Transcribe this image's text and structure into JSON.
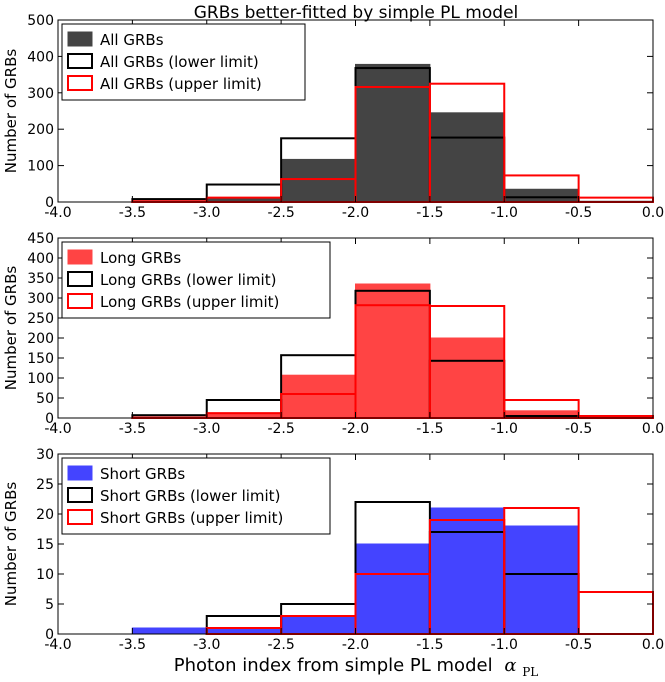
{
  "title": "GRBs better-fitted by simple PL model",
  "xlabel": "Photon index from simple PL model",
  "xlabel_symbol": "α",
  "xlabel_subscript": "PL",
  "colors": {
    "all": "#444444",
    "long": "#ff4444",
    "short": "#4444ff",
    "limit_lower": "#000000",
    "limit_upper": "#ff0000"
  },
  "chart_data": [
    {
      "type": "bar",
      "id": "all",
      "ylabel": "Number of GRBs",
      "xlim": [
        -4.0,
        0.0
      ],
      "ylim": [
        0,
        500
      ],
      "xticks": [
        "-4.0",
        "-3.5",
        "-3.0",
        "-2.5",
        "-2.0",
        "-1.5",
        "-1.0",
        "-0.5",
        "0.0"
      ],
      "yticks": [
        "0",
        "100",
        "200",
        "300",
        "400",
        "500"
      ],
      "bin_edges": [
        -4.0,
        -3.5,
        -3.0,
        -2.5,
        -2.0,
        -1.5,
        -1.0,
        -0.5,
        0.0
      ],
      "legend": [
        "All GRBs",
        "All GRBs (lower limit)",
        "All GRBs (upper limit)"
      ],
      "series": [
        {
          "name": "All GRBs",
          "style": "filled",
          "values": [
            0,
            3,
            10,
            117,
            378,
            245,
            35,
            2
          ]
        },
        {
          "name": "All GRBs (lower limit)",
          "style": "outline-black",
          "values": [
            0,
            8,
            48,
            175,
            368,
            177,
            13,
            0
          ]
        },
        {
          "name": "All GRBs (upper limit)",
          "style": "outline-red",
          "values": [
            0,
            2,
            12,
            63,
            316,
            325,
            73,
            12
          ]
        }
      ]
    },
    {
      "type": "bar",
      "id": "long",
      "ylabel": "Number of GRBs",
      "xlim": [
        -4.0,
        0.0
      ],
      "ylim": [
        0,
        450
      ],
      "xticks": [
        "-4.0",
        "-3.5",
        "-3.0",
        "-2.5",
        "-2.0",
        "-1.5",
        "-1.0",
        "-0.5",
        "0.0"
      ],
      "yticks": [
        "0",
        "50",
        "100",
        "150",
        "200",
        "250",
        "300",
        "350",
        "400",
        "450"
      ],
      "bin_edges": [
        -4.0,
        -3.5,
        -3.0,
        -2.5,
        -2.0,
        -1.5,
        -1.0,
        -0.5,
        0.0
      ],
      "legend": [
        "Long GRBs",
        "Long GRBs (lower limit)",
        "Long GRBs (upper limit)"
      ],
      "series": [
        {
          "name": "Long GRBs",
          "style": "filled",
          "values": [
            0,
            2,
            13,
            107,
            335,
            200,
            18,
            2
          ]
        },
        {
          "name": "Long GRBs (lower limit)",
          "style": "outline-black",
          "values": [
            0,
            7,
            45,
            157,
            318,
            143,
            5,
            0
          ]
        },
        {
          "name": "Long GRBs (upper limit)",
          "style": "outline-red",
          "values": [
            0,
            1,
            12,
            60,
            282,
            280,
            45,
            5
          ]
        }
      ]
    },
    {
      "type": "bar",
      "id": "short",
      "ylabel": "Number of GRBs",
      "xlim": [
        -4.0,
        0.0
      ],
      "ylim": [
        0,
        30
      ],
      "xticks": [
        "-4.0",
        "-3.5",
        "-3.0",
        "-2.5",
        "-2.0",
        "-1.5",
        "-1.0",
        "-0.5",
        "0.0"
      ],
      "yticks": [
        "0",
        "5",
        "10",
        "15",
        "20",
        "25",
        "30"
      ],
      "bin_edges": [
        -4.0,
        -3.5,
        -3.0,
        -2.5,
        -2.0,
        -1.5,
        -1.0,
        -0.5,
        0.0
      ],
      "legend": [
        "Short GRBs",
        "Short GRBs (lower limit)",
        "Short GRBs (upper limit)"
      ],
      "series": [
        {
          "name": "Short GRBs",
          "style": "filled",
          "values": [
            0,
            1,
            1,
            3,
            15,
            21,
            18,
            0
          ]
        },
        {
          "name": "Short GRBs (lower limit)",
          "style": "outline-black",
          "values": [
            0,
            0,
            3,
            5,
            22,
            17,
            10,
            0
          ]
        },
        {
          "name": "Short GRBs (upper limit)",
          "style": "outline-red",
          "values": [
            0,
            0,
            1,
            3,
            10,
            19,
            21,
            7
          ]
        }
      ]
    }
  ]
}
